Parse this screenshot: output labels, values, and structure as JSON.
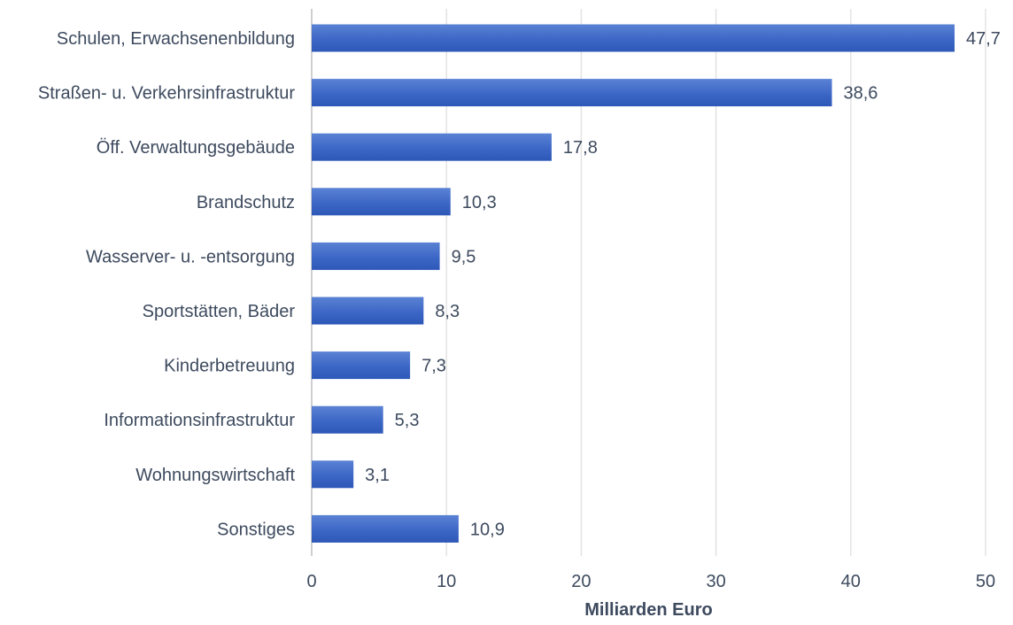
{
  "chart_data": {
    "type": "bar",
    "orientation": "horizontal",
    "categories": [
      "Schulen, Erwachsenenbildung",
      "Straßen- u. Verkehrsinfrastruktur",
      "Öff. Verwaltungsgebäude",
      "Brandschutz",
      "Wasserver- u. -entsorgung",
      "Sportstätten, Bäder",
      "Kinderbetreuung",
      "Informationsinfrastruktur",
      "Wohnungswirtschaft",
      "Sonstiges"
    ],
    "values": [
      47.7,
      38.6,
      17.8,
      10.3,
      9.5,
      8.3,
      7.3,
      5.3,
      3.1,
      10.9
    ],
    "value_labels": [
      "47,7",
      "38,6",
      "17,8",
      "10,3",
      "9,5",
      "8,3",
      "7,3",
      "5,3",
      "3,1",
      "10,9"
    ],
    "xlabel": "Milliarden Euro",
    "ylabel": "",
    "title": "",
    "xlim": [
      0,
      50
    ],
    "xticks": [
      0,
      10,
      20,
      30,
      40,
      50
    ],
    "xtick_labels": [
      "0",
      "10",
      "20",
      "30",
      "40",
      "50"
    ],
    "grid": true,
    "legend": "none",
    "bar_color": "#3a65c4"
  }
}
